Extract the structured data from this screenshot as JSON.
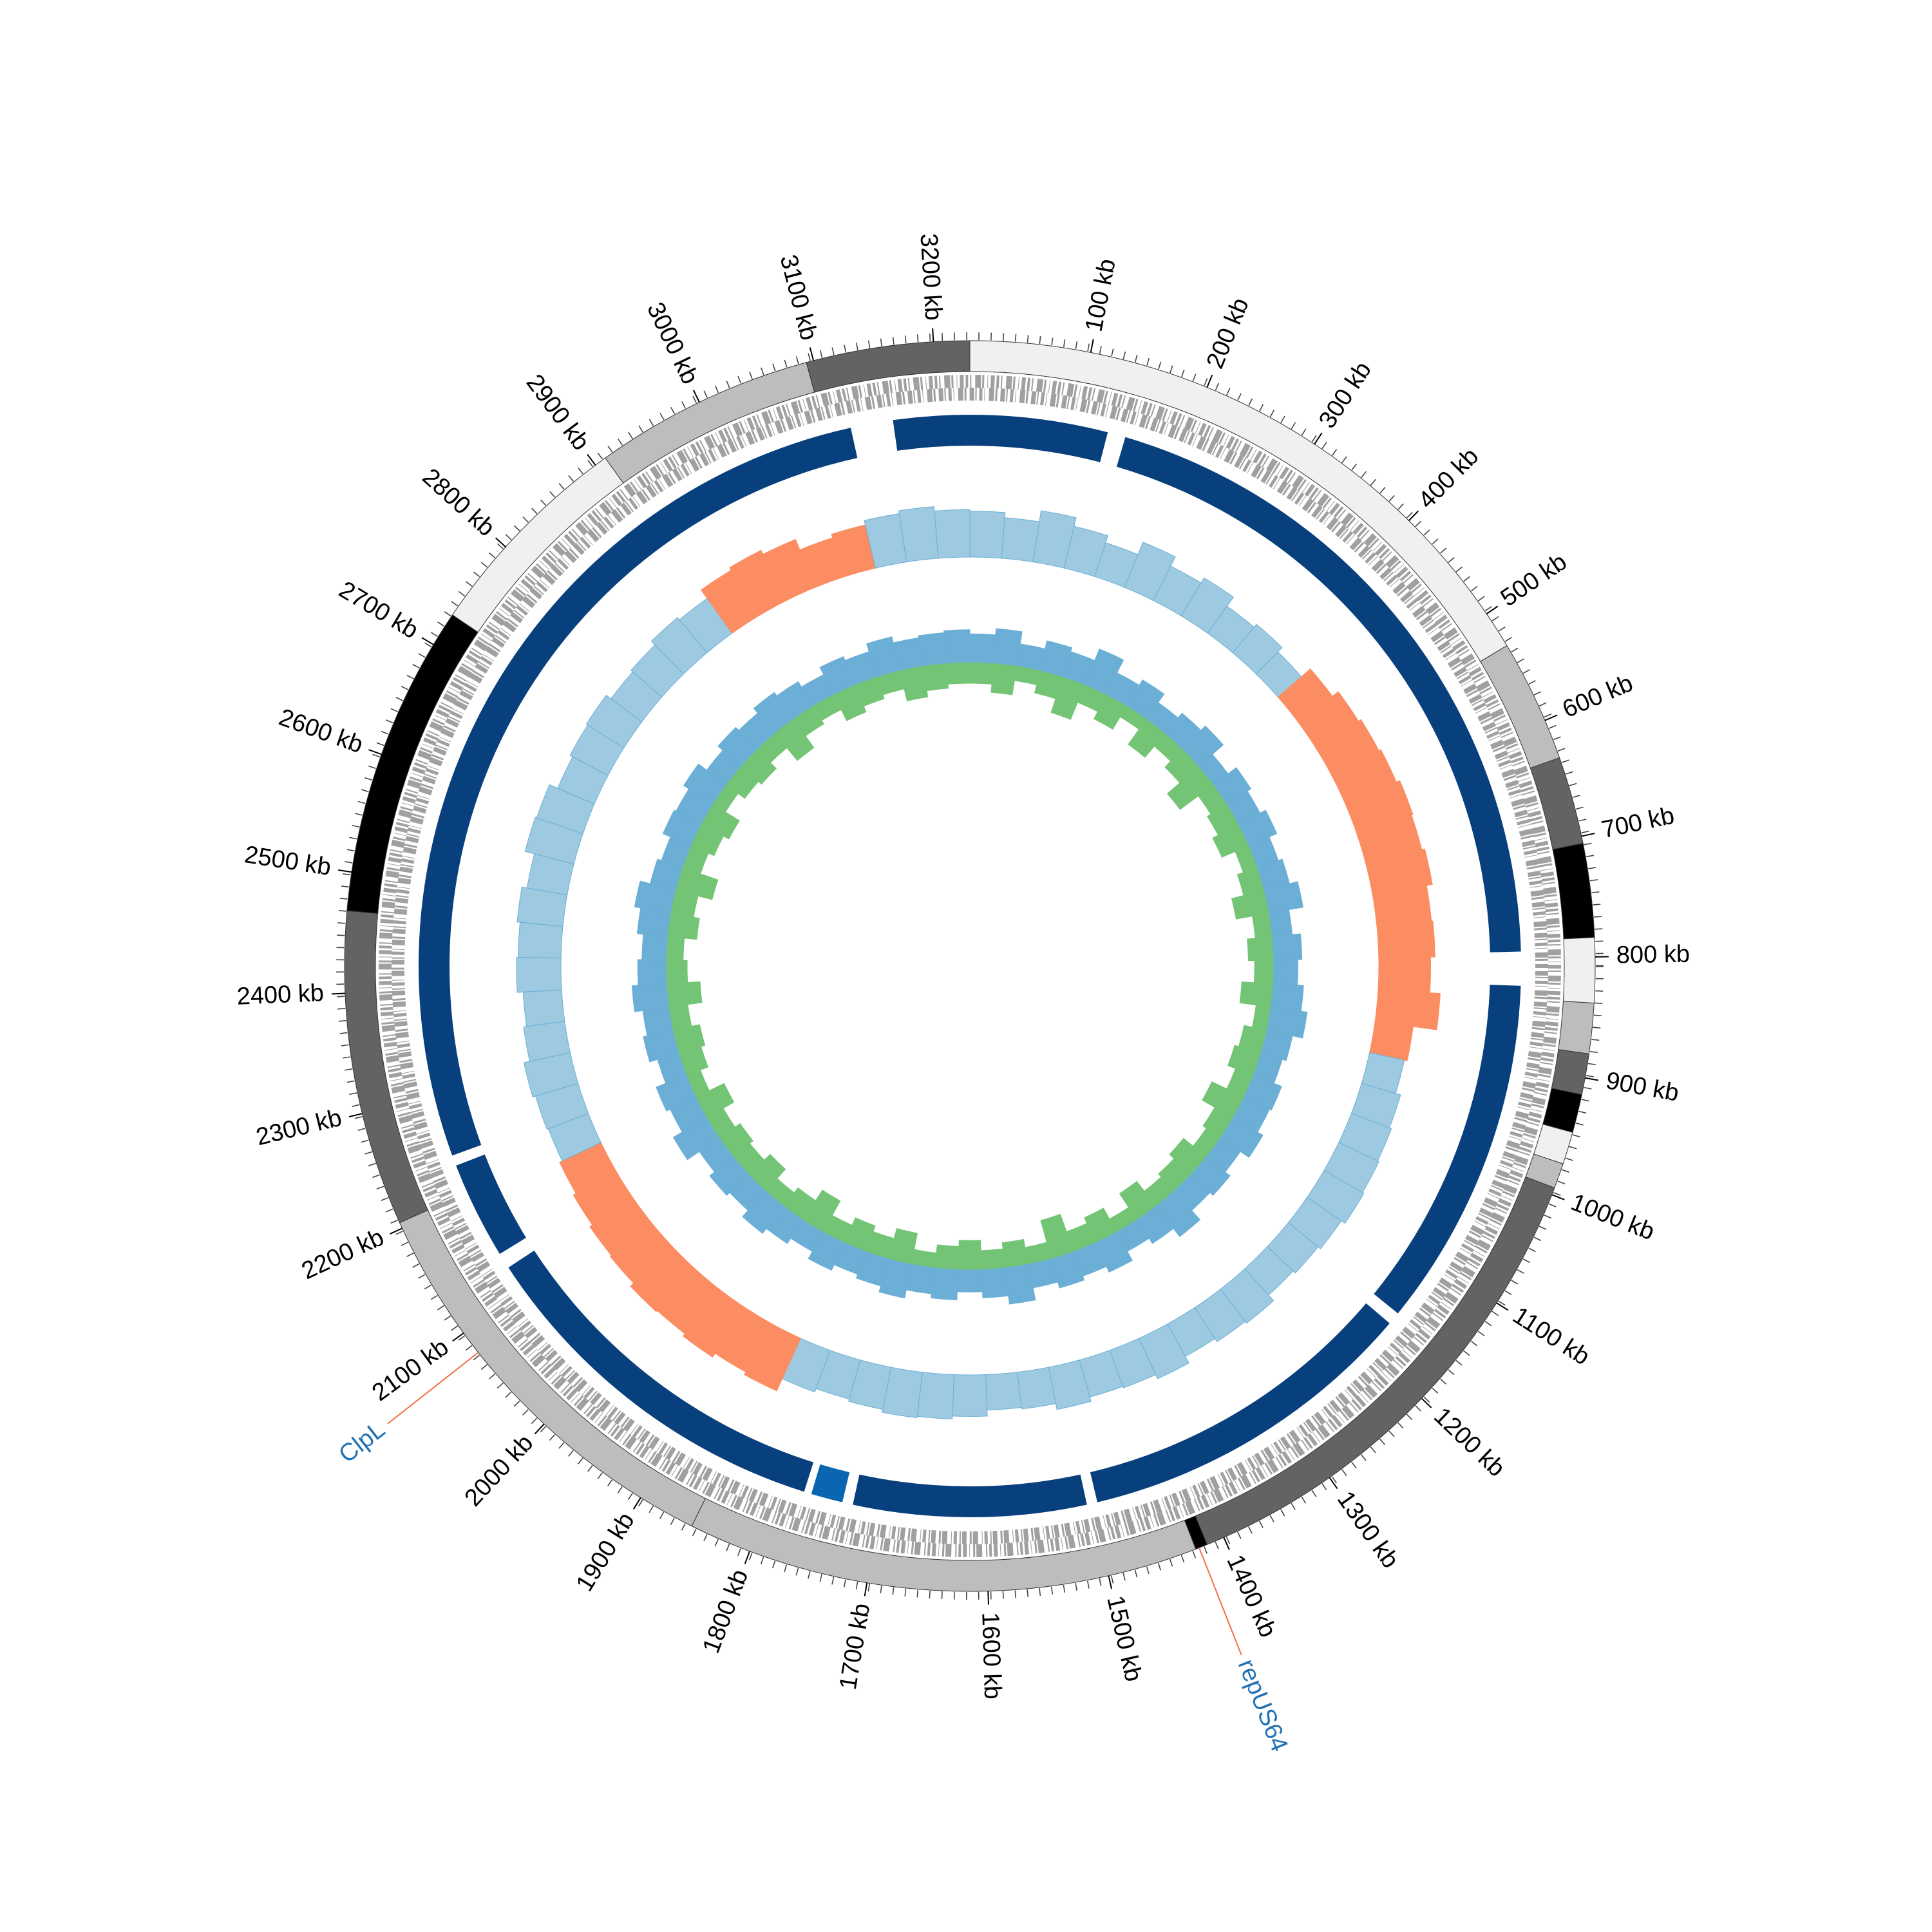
{
  "chart_data": {
    "type": "circos",
    "xlim": [
      0,
      3230
    ],
    "xticks": [
      {
        "value": 100,
        "label": "100 kb"
      },
      {
        "value": 200,
        "label": "200 kb"
      },
      {
        "value": 300,
        "label": "300 kb"
      },
      {
        "value": 400,
        "label": "400 kb"
      },
      {
        "value": 500,
        "label": "500 kb"
      },
      {
        "value": 600,
        "label": "600 kb"
      },
      {
        "value": 700,
        "label": "700 kb"
      },
      {
        "value": 800,
        "label": "800 kb"
      },
      {
        "value": 900,
        "label": "900 kb"
      },
      {
        "value": 1000,
        "label": "1000 kb"
      },
      {
        "value": 1100,
        "label": "1100 kb"
      },
      {
        "value": 1200,
        "label": "1200 kb"
      },
      {
        "value": 1300,
        "label": "1300 kb"
      },
      {
        "value": 1400,
        "label": "1400 kb"
      },
      {
        "value": 1500,
        "label": "1500 kb"
      },
      {
        "value": 1600,
        "label": "1600 kb"
      },
      {
        "value": 1700,
        "label": "1700 kb"
      },
      {
        "value": 1800,
        "label": "1800 kb"
      },
      {
        "value": 1900,
        "label": "1900 kb"
      },
      {
        "value": 2000,
        "label": "2000 kb"
      },
      {
        "value": 2100,
        "label": "2100 kb"
      },
      {
        "value": 2200,
        "label": "2200 kb"
      },
      {
        "value": 2300,
        "label": "2300 kb"
      },
      {
        "value": 2400,
        "label": "2400 kb"
      },
      {
        "value": 2500,
        "label": "2500 kb"
      },
      {
        "value": 2600,
        "label": "2600 kb"
      },
      {
        "value": 2700,
        "label": "2700 kb"
      },
      {
        "value": 2800,
        "label": "2800 kb"
      },
      {
        "value": 2900,
        "label": "2900 kb"
      },
      {
        "value": 3000,
        "label": "3000 kb"
      },
      {
        "value": 3100,
        "label": "3100 kb"
      },
      {
        "value": 3200,
        "label": "3200 kb"
      }
    ],
    "contigs": {
      "starts": [
        0,
        531,
        633,
        706,
        784,
        838,
        880,
        914,
        946,
        973,
        994,
        1415,
        1425,
        1852,
        2205,
        2468,
        2729,
        2910,
        3094
      ],
      "ends": [
        531,
        633,
        706,
        784,
        838,
        880,
        914,
        946,
        973,
        994,
        1415,
        1425,
        1852,
        2205,
        2468,
        2729,
        2910,
        3094,
        3230
      ],
      "colors": [
        "#f0f0f0",
        "#bdbdbd",
        "#636363",
        "#000000",
        "#f0f0f0",
        "#bdbdbd",
        "#636363",
        "#000000",
        "#f0f0f0",
        "#bdbdbd",
        "#636363",
        "#000000",
        "#bdbdbd",
        "#bdbdbd",
        "#636363",
        "#000000",
        "#f0f0f0",
        "#bdbdbd",
        "#636363"
      ]
    },
    "blocks": {
      "starts": [
        0,
        147,
        826,
        1170,
        1505,
        1735,
        1772,
        2140,
        2242,
        3158
      ],
      "ends": [
        130,
        794,
        1158,
        1495,
        1725,
        1765,
        2125,
        2232,
        3118,
        3230
      ],
      "colors": [
        "#08407e",
        "#08407e",
        "#08407e",
        "#08407e",
        "#08407e",
        "#0a66b0",
        "#08407e",
        "#08407e",
        "#08407e",
        "#08407e"
      ]
    },
    "histogram": {
      "ylim": [
        0,
        100
      ],
      "color": "#9ecae1",
      "highlight_color": "#fc8d62",
      "highlight_starts": [
        420,
        880,
        1840,
        2920
      ],
      "highlight_ends": [
        860,
        900,
        2190,
        3094
      ],
      "values": [
        62,
        55,
        70,
        58,
        48,
        66,
        52,
        60,
        45,
        50,
        42,
        58,
        68,
        72,
        75,
        80,
        78,
        82,
        74,
        76,
        70,
        84,
        52,
        48,
        55,
        58,
        60,
        62,
        56,
        52,
        48,
        58,
        55,
        50,
        60,
        54,
        52,
        58,
        50,
        48,
        56,
        60,
        62,
        58,
        55,
        60,
        78,
        74,
        80,
        76,
        78,
        72,
        70,
        66,
        62,
        58,
        60,
        64,
        56,
        52,
        60,
        58,
        62,
        55,
        68,
        66,
        54,
        58,
        60,
        52,
        55,
        62,
        58,
        72,
        76,
        70,
        55,
        60,
        66,
        70,
        64
      ]
    },
    "skew": {
      "series": [
        {
          "color": "#6baed6",
          "values": [
            28,
            34,
            22,
            30,
            26,
            38,
            24,
            30,
            20,
            26,
            32,
            18,
            28,
            24,
            30,
            22,
            26,
            34,
            20,
            28,
            24,
            30,
            36,
            26,
            22,
            30,
            28,
            34,
            24,
            30,
            26,
            38,
            28,
            22,
            32,
            26,
            30,
            24,
            36,
            28,
            22,
            30,
            26,
            34,
            28,
            24,
            30,
            22,
            28,
            34,
            26,
            30,
            24,
            38,
            28,
            32,
            22,
            30,
            26,
            34,
            28,
            24,
            30,
            36,
            26,
            22,
            30,
            28,
            34,
            24,
            30,
            26,
            32,
            28,
            22,
            30,
            26,
            34,
            28,
            30,
            32
          ]
        },
        {
          "color": "#74c476",
          "values": [
            -20,
            -28,
            -14,
            -22,
            -36,
            -18,
            -26,
            -12,
            -30,
            -16,
            -24,
            -40,
            -18,
            -22,
            -28,
            -14,
            -20,
            -32,
            -16,
            -24,
            -18,
            -30,
            -14,
            -22,
            -26,
            -18,
            -34,
            -20,
            -16,
            -28,
            -22,
            -18,
            -30,
            -14,
            -26,
            -20,
            -38,
            -16,
            -24,
            -18,
            -28,
            -22,
            -14,
            -30,
            -20,
            -26,
            -18,
            -34,
            -22,
            -16,
            -28,
            -20,
            -24,
            -18,
            -30,
            -14,
            -22,
            -26,
            -18,
            -32,
            -20,
            -16,
            -28,
            -22,
            -36,
            -18,
            -24,
            -30,
            -14,
            -22,
            -26,
            -18,
            -34,
            -20,
            -16,
            -28,
            -22,
            -18,
            -30,
            -24,
            -20
          ]
        }
      ]
    },
    "annotations": [
      {
        "label": "ClpL",
        "position": 2080
      },
      {
        "label": "repUS64",
        "position": 1422
      }
    ]
  }
}
